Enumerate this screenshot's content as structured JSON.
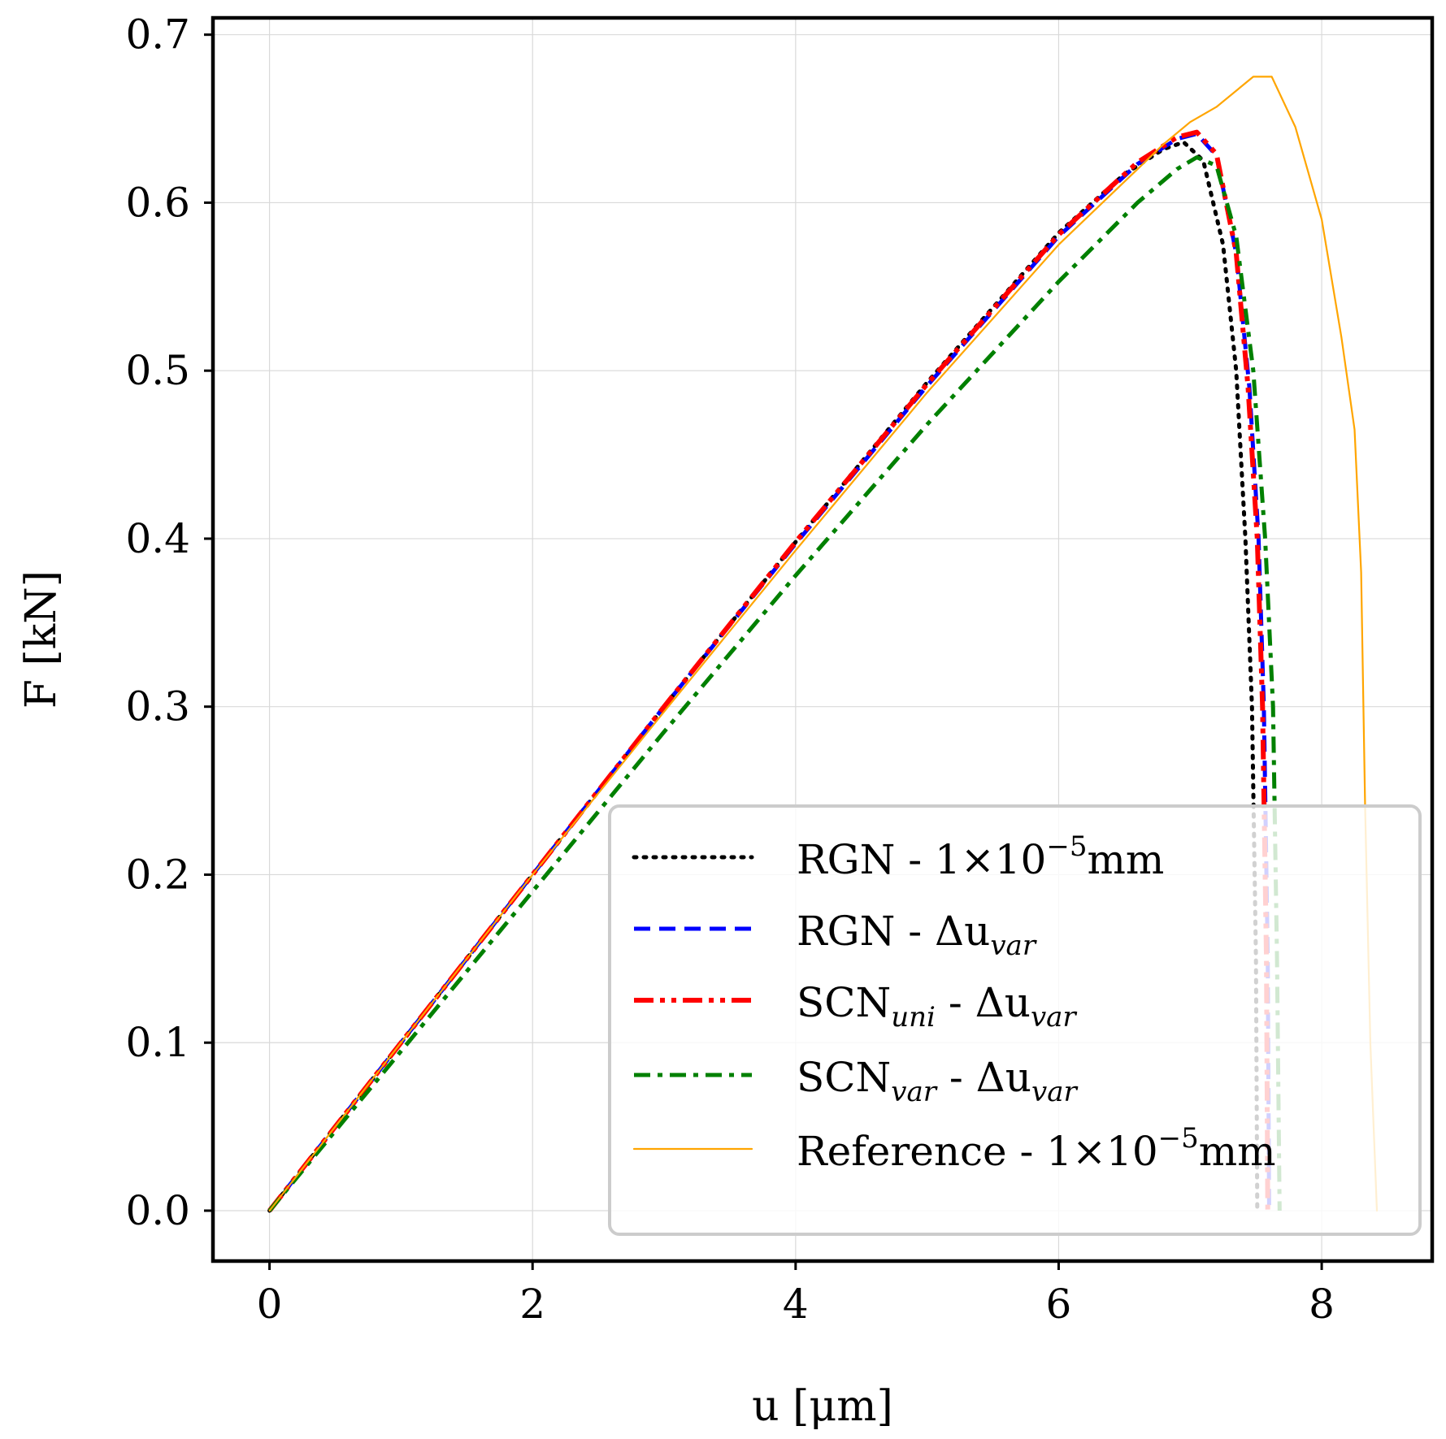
{
  "chart_data": {
    "type": "line",
    "title": "",
    "xlabel": "u [μm]",
    "ylabel": "F [kN]",
    "xlim": [
      -0.43,
      8.84
    ],
    "ylim": [
      -0.03,
      0.71
    ],
    "xticks": [
      0,
      2,
      4,
      6,
      8
    ],
    "yticks": [
      0.0,
      0.1,
      0.2,
      0.3,
      0.4,
      0.5,
      0.6,
      0.7
    ],
    "xtick_labels": [
      "0",
      "2",
      "4",
      "6",
      "8"
    ],
    "ytick_labels": [
      "0.0",
      "0.1",
      "0.2",
      "0.3",
      "0.4",
      "0.5",
      "0.6",
      "0.7"
    ],
    "grid": true,
    "legend_position": "lower-right",
    "series": [
      {
        "name": "RGN - 1×10⁻⁵mm",
        "legend": {
          "main": "RGN - 1×10",
          "sup": "−5",
          "tail": "mm"
        },
        "color": "#000000",
        "style": "dotted",
        "x": [
          0,
          1,
          2,
          3,
          4,
          5,
          6,
          6.5,
          6.8,
          6.95,
          7.1,
          7.25,
          7.35,
          7.42,
          7.47,
          7.5,
          7.51
        ],
        "y": [
          0,
          0.1,
          0.2,
          0.3,
          0.398,
          0.493,
          0.582,
          0.617,
          0.632,
          0.636,
          0.625,
          0.575,
          0.5,
          0.4,
          0.3,
          0.15,
          0.0
        ]
      },
      {
        "name": "RGN - Δu_var",
        "legend": {
          "main": "RGN - Δu",
          "sub": "var"
        },
        "color": "#0000ff",
        "style": "dashed",
        "x": [
          0,
          1,
          2,
          3,
          4,
          5,
          6,
          6.6,
          6.9,
          7.05,
          7.2,
          7.35,
          7.45,
          7.52,
          7.56,
          7.59,
          7.6
        ],
        "y": [
          0,
          0.1,
          0.2,
          0.3,
          0.397,
          0.491,
          0.58,
          0.623,
          0.638,
          0.641,
          0.628,
          0.57,
          0.49,
          0.4,
          0.3,
          0.15,
          0.0
        ]
      },
      {
        "name": "SCN_uni - Δu_var",
        "legend": {
          "main": "SCN",
          "sub": "uni",
          "tail": " - Δu",
          "sub2": "var"
        },
        "color": "#ff0000",
        "style": "dashdotdot",
        "x": [
          0,
          1,
          2,
          3,
          4,
          5,
          6,
          6.6,
          6.9,
          7.05,
          7.2,
          7.35,
          7.44,
          7.51,
          7.55,
          7.58,
          7.59
        ],
        "y": [
          0,
          0.1,
          0.2,
          0.3,
          0.398,
          0.492,
          0.581,
          0.624,
          0.639,
          0.642,
          0.629,
          0.57,
          0.49,
          0.4,
          0.3,
          0.15,
          0.0
        ]
      },
      {
        "name": "SCN_var - Δu_var",
        "legend": {
          "main": "SCN",
          "sub": "var",
          "tail": " - Δu",
          "sub2": "var"
        },
        "color": "#008000",
        "style": "dashdot",
        "x": [
          0,
          1,
          2,
          3,
          4,
          5,
          6,
          6.6,
          6.9,
          7.05,
          7.2,
          7.35,
          7.48,
          7.57,
          7.63,
          7.66,
          7.68
        ],
        "y": [
          0,
          0.095,
          0.19,
          0.285,
          0.378,
          0.468,
          0.553,
          0.6,
          0.62,
          0.627,
          0.622,
          0.58,
          0.5,
          0.4,
          0.3,
          0.15,
          0.0
        ]
      },
      {
        "name": "Reference - 1×10⁻⁵mm",
        "legend": {
          "main": "Reference - 1×10",
          "sup": "−5",
          "tail": "mm"
        },
        "color": "#ffa500",
        "style": "solid",
        "x": [
          0,
          1,
          2,
          3,
          4,
          5,
          6,
          6.8,
          7,
          7.2,
          7.48,
          7.62,
          7.8,
          8.0,
          8.15,
          8.25,
          8.3,
          8.33,
          8.37,
          8.42
        ],
        "y": [
          0,
          0.1,
          0.2,
          0.297,
          0.393,
          0.487,
          0.575,
          0.635,
          0.648,
          0.657,
          0.675,
          0.675,
          0.645,
          0.59,
          0.52,
          0.465,
          0.38,
          0.24,
          0.1,
          0.0
        ]
      }
    ]
  }
}
